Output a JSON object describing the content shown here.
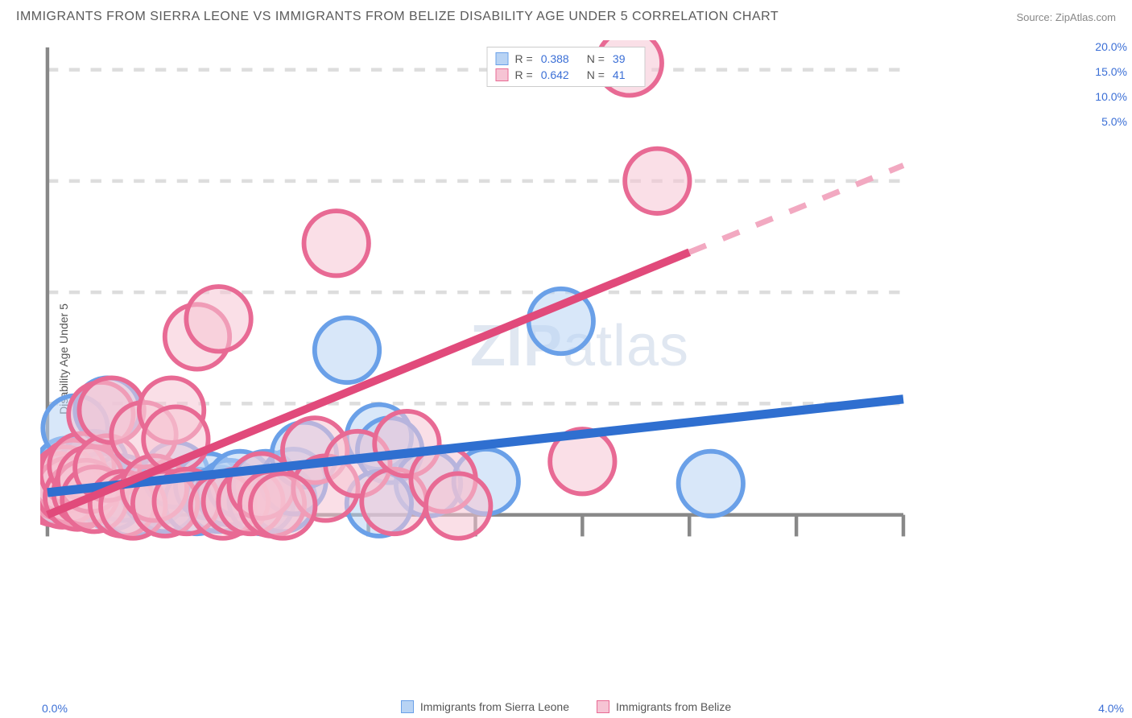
{
  "header": {
    "title": "IMMIGRANTS FROM SIERRA LEONE VS IMMIGRANTS FROM BELIZE DISABILITY AGE UNDER 5 CORRELATION CHART",
    "source": "Source: ZipAtlas.com"
  },
  "chart": {
    "type": "scatter-with-regression",
    "y_axis_label": "Disability Age Under 5",
    "watermark": "ZIPatlas",
    "background_color": "#ffffff",
    "grid_color": "#dddddd",
    "axis_line_color": "#888888",
    "xlim": [
      0.0,
      4.0
    ],
    "ylim": [
      0.0,
      21.0
    ],
    "x_ticks": [
      0.0,
      0.5,
      1.0,
      1.5,
      2.0,
      2.5,
      3.0,
      3.5,
      4.0
    ],
    "x_tick_labels_shown": {
      "left": "0.0%",
      "right": "4.0%"
    },
    "y_ticks": [
      5.0,
      10.0,
      15.0,
      20.0
    ],
    "y_tick_labels": [
      "5.0%",
      "10.0%",
      "15.0%",
      "20.0%"
    ],
    "series": [
      {
        "name": "Immigrants from Sierra Leone",
        "stroke": "#6aa0e8",
        "fill": "#b8d3f4",
        "fill_opacity": 0.55,
        "marker_radius": 9,
        "R": 0.388,
        "N": 39,
        "regression": {
          "x1": 0.0,
          "y1": 1.0,
          "x2": 4.0,
          "y2": 5.2,
          "color": "#2f6fd0",
          "width": 2.5,
          "dash": "none"
        },
        "points": [
          [
            0.03,
            1.1
          ],
          [
            0.04,
            1.4
          ],
          [
            0.06,
            1.0
          ],
          [
            0.06,
            1.7
          ],
          [
            0.08,
            1.2
          ],
          [
            0.09,
            2.0
          ],
          [
            0.1,
            1.5
          ],
          [
            0.12,
            1.1
          ],
          [
            0.13,
            3.9
          ],
          [
            0.15,
            1.2
          ],
          [
            0.18,
            1.8
          ],
          [
            0.2,
            1.0
          ],
          [
            0.22,
            2.3
          ],
          [
            0.25,
            1.3
          ],
          [
            0.28,
            4.7
          ],
          [
            0.3,
            0.8
          ],
          [
            0.35,
            1.2
          ],
          [
            0.4,
            0.5
          ],
          [
            0.5,
            1.0
          ],
          [
            0.55,
            0.7
          ],
          [
            0.6,
            1.8
          ],
          [
            0.7,
            0.6
          ],
          [
            0.75,
            1.3
          ],
          [
            0.8,
            0.7
          ],
          [
            0.85,
            1.0
          ],
          [
            0.9,
            1.4
          ],
          [
            1.0,
            0.6
          ],
          [
            1.02,
            1.4
          ],
          [
            1.1,
            0.7
          ],
          [
            1.15,
            1.5
          ],
          [
            1.2,
            2.7
          ],
          [
            1.4,
            7.4
          ],
          [
            1.55,
            3.5
          ],
          [
            1.6,
            2.9
          ],
          [
            1.78,
            1.4
          ],
          [
            2.05,
            1.5
          ],
          [
            2.4,
            8.7
          ],
          [
            3.1,
            1.4
          ],
          [
            1.55,
            0.5
          ]
        ]
      },
      {
        "name": "Immigrants from Belize",
        "stroke": "#e86a94",
        "fill": "#f6c4d4",
        "fill_opacity": 0.55,
        "marker_radius": 9,
        "R": 0.642,
        "N": 41,
        "regression_solid": {
          "x1": 0.0,
          "y1": 0.0,
          "x2": 3.0,
          "y2": 11.8,
          "color": "#e14a7b",
          "width": 2.2,
          "dash": "none"
        },
        "regression_dashed": {
          "x1": 3.0,
          "y1": 11.8,
          "x2": 4.0,
          "y2": 15.7,
          "color": "#f2a9c1",
          "width": 1.6,
          "dash": "5,5"
        },
        "points": [
          [
            0.03,
            1.0
          ],
          [
            0.05,
            1.3
          ],
          [
            0.07,
            0.9
          ],
          [
            0.08,
            1.6
          ],
          [
            0.1,
            1.1
          ],
          [
            0.12,
            1.9
          ],
          [
            0.14,
            0.8
          ],
          [
            0.16,
            2.2
          ],
          [
            0.18,
            1.0
          ],
          [
            0.2,
            1.6
          ],
          [
            0.22,
            0.7
          ],
          [
            0.25,
            4.5
          ],
          [
            0.28,
            2.1
          ],
          [
            0.3,
            4.7
          ],
          [
            0.35,
            0.5
          ],
          [
            0.4,
            0.4
          ],
          [
            0.45,
            3.6
          ],
          [
            0.5,
            1.2
          ],
          [
            0.55,
            0.5
          ],
          [
            0.58,
            4.7
          ],
          [
            0.6,
            3.4
          ],
          [
            0.65,
            0.6
          ],
          [
            0.7,
            8.0
          ],
          [
            0.8,
            8.8
          ],
          [
            0.82,
            0.4
          ],
          [
            0.88,
            0.6
          ],
          [
            0.95,
            0.6
          ],
          [
            1.0,
            1.3
          ],
          [
            1.05,
            0.5
          ],
          [
            1.25,
            2.9
          ],
          [
            1.3,
            1.2
          ],
          [
            1.35,
            12.2
          ],
          [
            1.45,
            2.3
          ],
          [
            1.62,
            0.6
          ],
          [
            1.68,
            3.2
          ],
          [
            1.85,
            1.6
          ],
          [
            1.92,
            0.4
          ],
          [
            2.5,
            2.4
          ],
          [
            2.72,
            20.3
          ],
          [
            2.85,
            15.0
          ],
          [
            1.1,
            0.4
          ]
        ]
      }
    ],
    "legend_top": {
      "rows": [
        {
          "swatch_fill": "#b8d3f4",
          "swatch_stroke": "#6aa0e8",
          "r_label": "R =",
          "r_val": "0.388",
          "n_label": "N =",
          "n_val": "39"
        },
        {
          "swatch_fill": "#f6c4d4",
          "swatch_stroke": "#e86a94",
          "r_label": "R =",
          "r_val": "0.642",
          "n_label": "N =",
          "n_val": "41"
        }
      ]
    },
    "legend_bottom": [
      {
        "swatch_fill": "#b8d3f4",
        "swatch_stroke": "#6aa0e8",
        "label": "Immigrants from Sierra Leone"
      },
      {
        "swatch_fill": "#f6c4d4",
        "swatch_stroke": "#e86a94",
        "label": "Immigrants from Belize"
      }
    ]
  }
}
